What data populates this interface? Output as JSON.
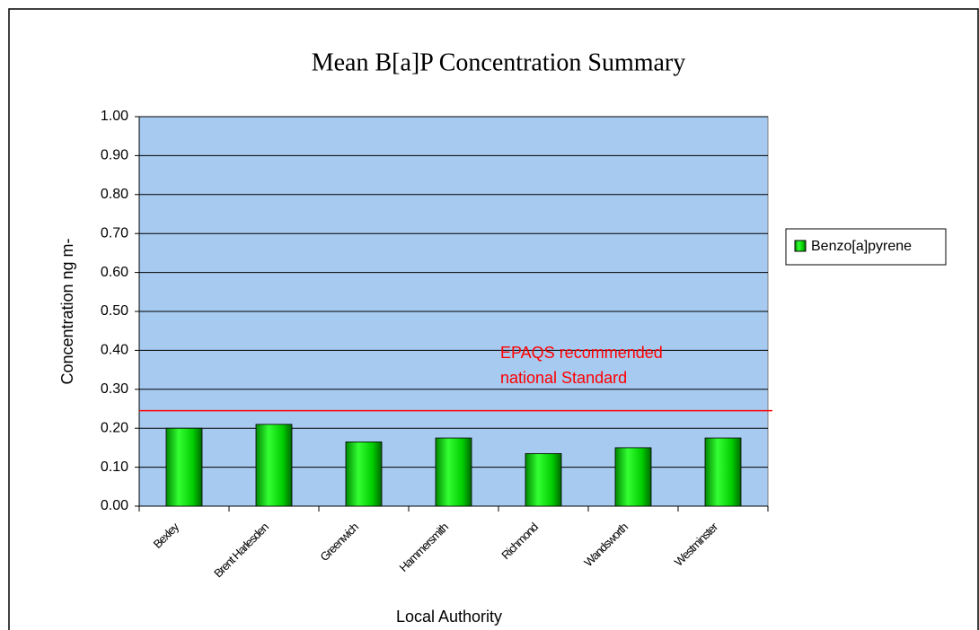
{
  "chart_data": {
    "type": "bar",
    "title": "Mean B[a]P Concentration Summary",
    "x_label": "Local Authority",
    "y_label": "Concentration ng m-",
    "categories": [
      "Bexley",
      "Brent Harlesden",
      "Greenwich",
      "Hammersmith",
      "Richmond",
      "Wandsworth",
      "Westminster"
    ],
    "series": [
      {
        "name": "Benzo[a]pyrene",
        "color": "#00cc00",
        "values": [
          0.2,
          0.21,
          0.165,
          0.175,
          0.135,
          0.15,
          0.175
        ]
      }
    ],
    "ylim": [
      0,
      1
    ],
    "yticks": [
      {
        "value": 0,
        "label": "0.00"
      },
      {
        "value": 0.1,
        "label": "0.10"
      },
      {
        "value": 0.2,
        "label": "0.20"
      },
      {
        "value": 0.3,
        "label": "0.30"
      },
      {
        "value": 0.4,
        "label": "0.40"
      },
      {
        "value": 0.5,
        "label": "0.50"
      },
      {
        "value": 0.6,
        "label": "0.60"
      },
      {
        "value": 0.7,
        "label": "0.70"
      },
      {
        "value": 0.8,
        "label": "0.80"
      },
      {
        "value": 0.9,
        "label": "0.90"
      },
      {
        "value": 1,
        "label": "1.00"
      }
    ],
    "grid": true,
    "legend": "right",
    "reference_line": {
      "value": 0.245,
      "color": "#ff0000",
      "label": [
        "EPAQS recommended",
        "national Standard"
      ]
    }
  }
}
